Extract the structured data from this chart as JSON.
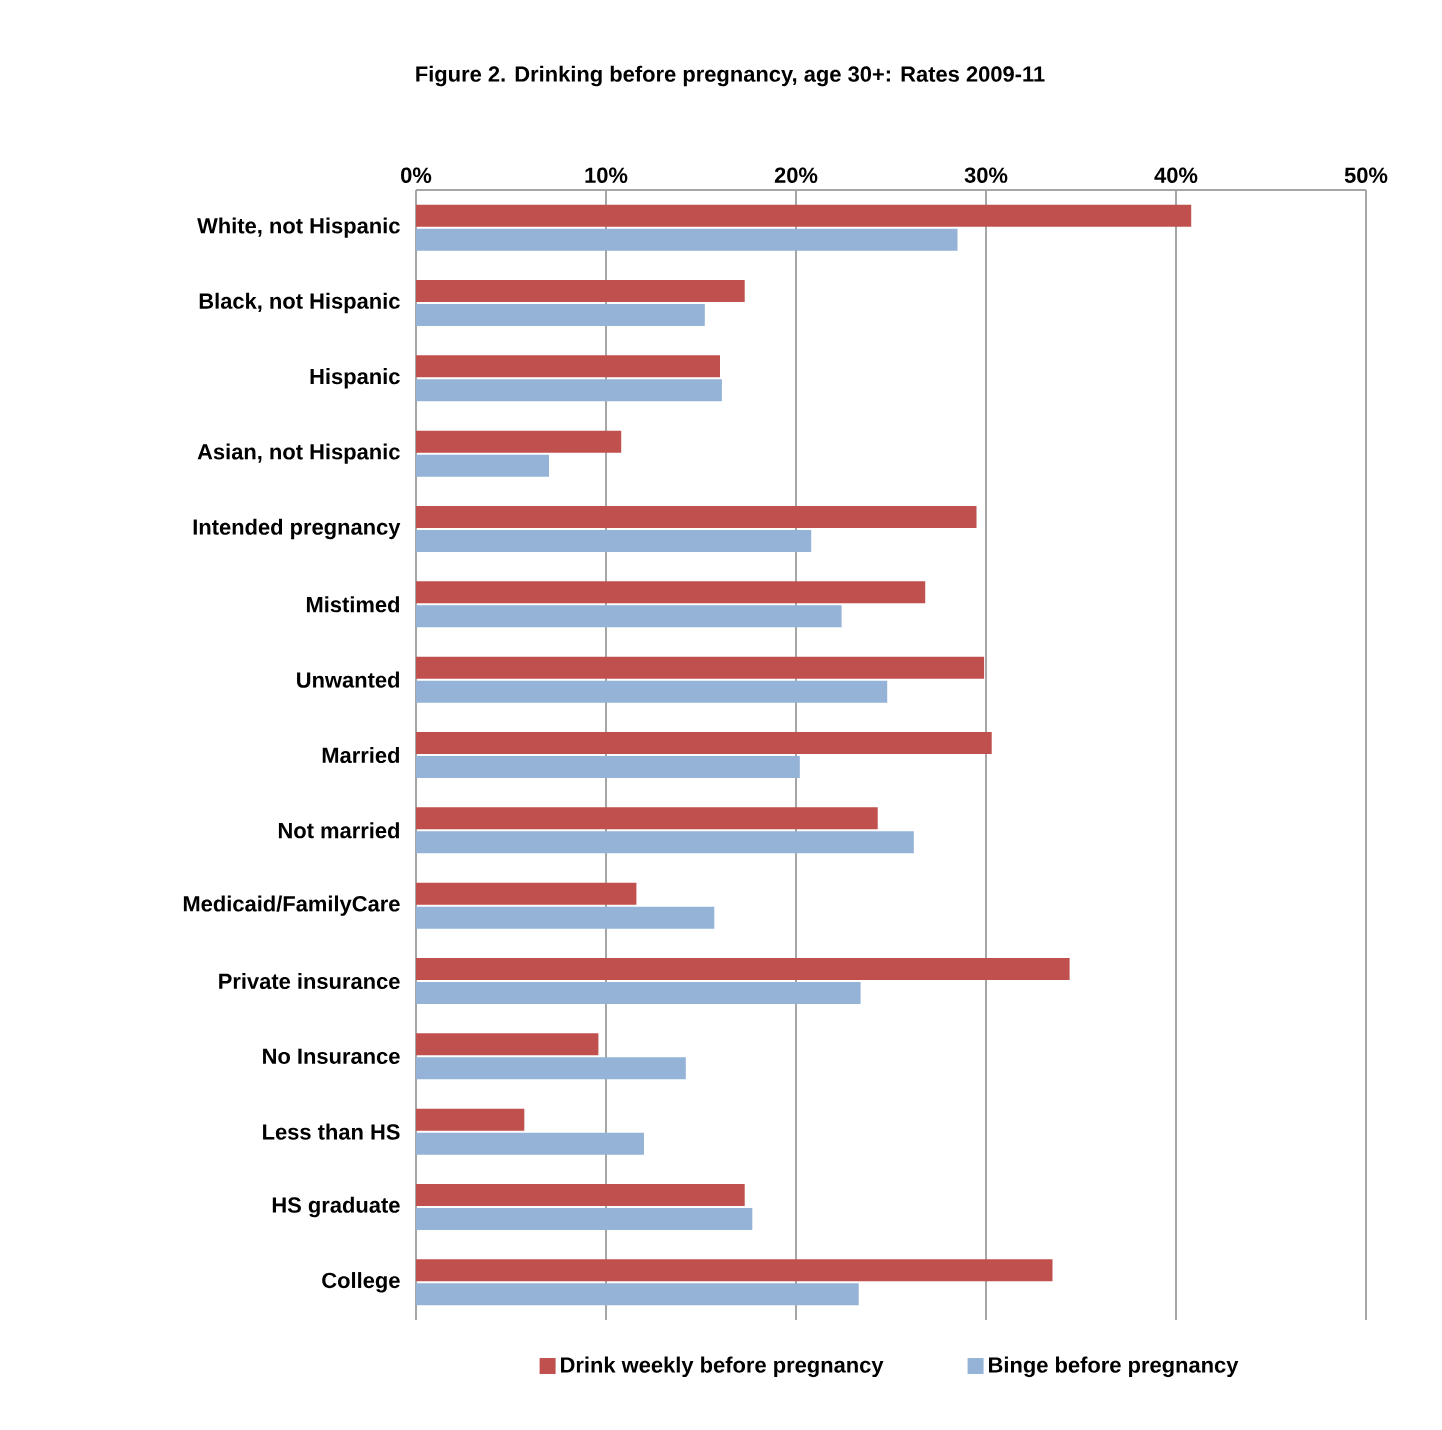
{
  "chart_data": {
    "type": "bar",
    "orientation": "horizontal",
    "title": "Figure 2. Drinking before pregnancy, age 30+: Rates 2009-11",
    "categories": [
      "White, not Hispanic",
      "Black, not Hispanic",
      "Hispanic",
      "Asian, not Hispanic",
      "Intended pregnancy",
      "Mistimed",
      "Unwanted",
      "Married",
      "Not married",
      "Medicaid/FamilyCare",
      "Private insurance",
      "No Insurance",
      "Less than HS",
      "HS graduate",
      "College"
    ],
    "series": [
      {
        "name": "Drink weekly before pregnancy",
        "color": "#c0504d",
        "values": [
          40.8,
          17.3,
          16.0,
          10.8,
          29.5,
          26.8,
          29.9,
          30.3,
          24.3,
          11.6,
          34.4,
          9.6,
          5.7,
          17.3,
          33.5
        ]
      },
      {
        "name": "Binge before pregnancy",
        "color": "#95b3d7",
        "values": [
          28.5,
          15.2,
          16.1,
          7.0,
          20.8,
          22.4,
          24.8,
          20.2,
          26.2,
          15.7,
          23.4,
          14.2,
          12.0,
          17.7,
          23.3
        ]
      }
    ],
    "xlim": [
      0,
      50
    ],
    "xticks": [
      {
        "value": 0,
        "label": "0%"
      },
      {
        "value": 10,
        "label": "10%"
      },
      {
        "value": 20,
        "label": "20%"
      },
      {
        "value": 30,
        "label": "30%"
      },
      {
        "value": 40,
        "label": "40%"
      },
      {
        "value": 50,
        "label": "50%"
      }
    ],
    "grid": "x",
    "legend": "bottom"
  }
}
